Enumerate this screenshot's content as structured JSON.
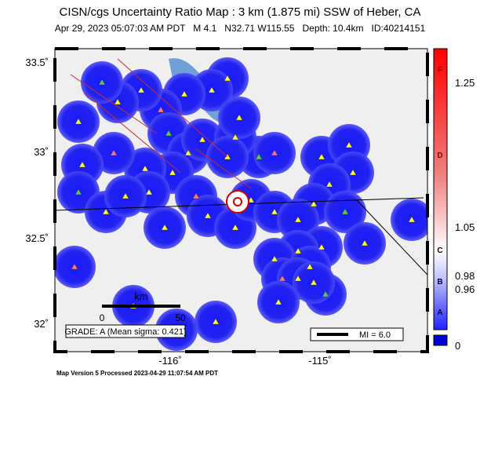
{
  "header": {
    "title": "CISN/cgs Uncertainty Ratio Map : 3 km (1.875 mi) SSW of Heber, CA",
    "subtitle": "Apr 29, 2023 05:07:03 AM PDT   M 4.1   N32.71 W115.55   Depth: 10.4km   ID:40214151"
  },
  "map": {
    "lat_labels": [
      "33.5˚",
      "33˚",
      "32.5˚",
      "32˚"
    ],
    "lon_labels": [
      "-116˚",
      "-115˚"
    ],
    "scale": {
      "unit": "km",
      "labels": [
        "0",
        "50"
      ]
    },
    "grade": "GRADE: A (Mean sigma: 0.421)",
    "mi_legend": "MI = 6.0"
  },
  "colorbar": {
    "letters": [
      "F",
      "D",
      "C",
      "B",
      "A"
    ],
    "values": [
      1.25,
      1.05,
      0.98,
      0.96,
      0
    ]
  },
  "footer": "Map Version 5 Processed 2023-04-29 11:07:54 AM PDT"
}
